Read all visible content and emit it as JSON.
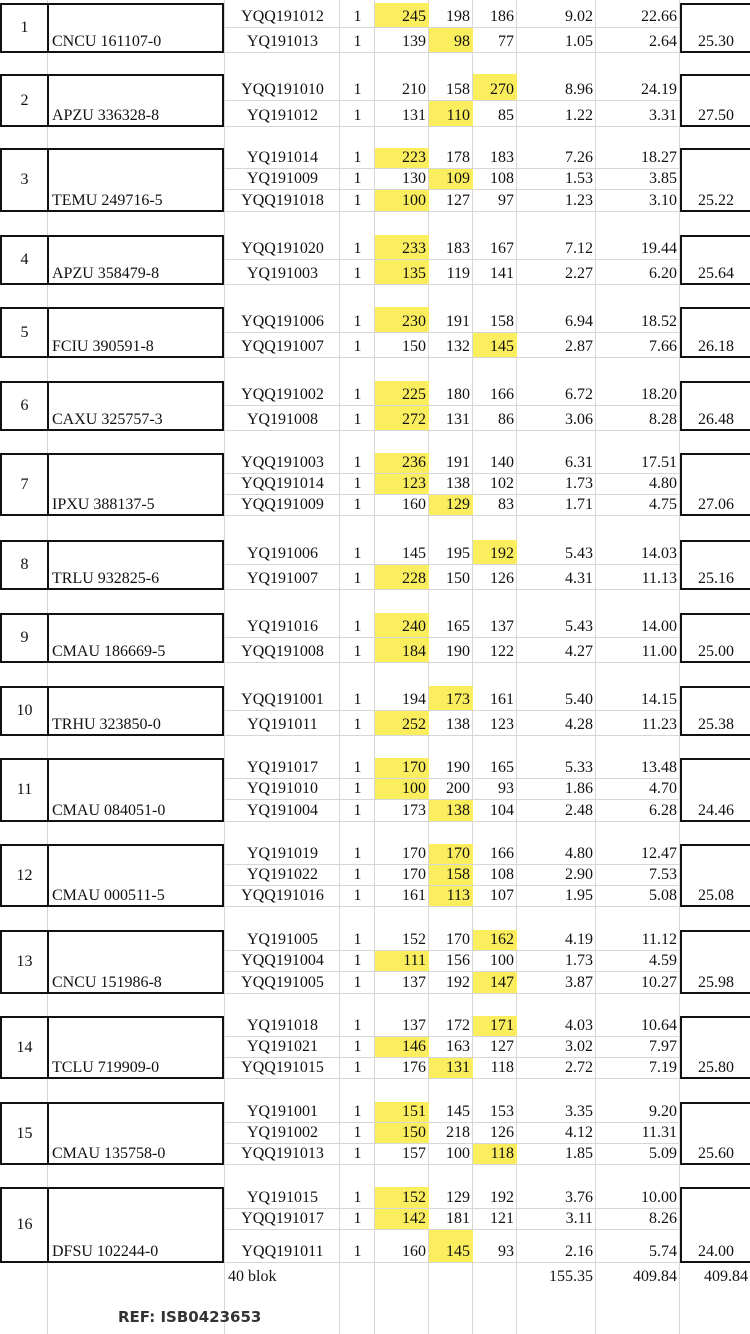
{
  "highlight_color": "#fbee5e",
  "groups": [
    {
      "no": "1",
      "container": "CNCU 161107-0",
      "total": "25.30",
      "rows": [
        {
          "block": "YQQ191012",
          "qty": "1",
          "a": "245",
          "b": "198",
          "c": "186",
          "d": "9.02",
          "e": "22.66",
          "hl": "a"
        },
        {
          "block": "YQ191013",
          "qty": "1",
          "a": "139",
          "b": "98",
          "c": "77",
          "d": "1.05",
          "e": "2.64",
          "hl": "b"
        }
      ]
    },
    {
      "no": "2",
      "container": "APZU 336328-8",
      "total": "27.50",
      "rows": [
        {
          "block": "YQQ191010",
          "qty": "1",
          "a": "210",
          "b": "158",
          "c": "270",
          "d": "8.96",
          "e": "24.19",
          "hl": "c"
        },
        {
          "block": "YQ191012",
          "qty": "1",
          "a": "131",
          "b": "110",
          "c": "85",
          "d": "1.22",
          "e": "3.31",
          "hl": "b"
        }
      ]
    },
    {
      "no": "3",
      "container": "TEMU 249716-5",
      "total": "25.22",
      "rows": [
        {
          "block": "YQ191014",
          "qty": "1",
          "a": "223",
          "b": "178",
          "c": "183",
          "d": "7.26",
          "e": "18.27",
          "hl": "a"
        },
        {
          "block": "YQ191009",
          "qty": "1",
          "a": "130",
          "b": "109",
          "c": "108",
          "d": "1.53",
          "e": "3.85",
          "hl": "b"
        },
        {
          "block": "YQQ191018",
          "qty": "1",
          "a": "100",
          "b": "127",
          "c": "97",
          "d": "1.23",
          "e": "3.10",
          "hl": "a"
        }
      ]
    },
    {
      "no": "4",
      "container": "APZU 358479-8",
      "total": "25.64",
      "rows": [
        {
          "block": "YQQ191020",
          "qty": "1",
          "a": "233",
          "b": "183",
          "c": "167",
          "d": "7.12",
          "e": "19.44",
          "hl": "a"
        },
        {
          "block": "YQ191003",
          "qty": "1",
          "a": "135",
          "b": "119",
          "c": "141",
          "d": "2.27",
          "e": "6.20",
          "hl": "a"
        }
      ]
    },
    {
      "no": "5",
      "container": "FCIU 390591-8",
      "total": "26.18",
      "rows": [
        {
          "block": "YQQ191006",
          "qty": "1",
          "a": "230",
          "b": "191",
          "c": "158",
          "d": "6.94",
          "e": "18.52",
          "hl": "a"
        },
        {
          "block": "YQQ191007",
          "qty": "1",
          "a": "150",
          "b": "132",
          "c": "145",
          "d": "2.87",
          "e": "7.66",
          "hl": "c"
        }
      ]
    },
    {
      "no": "6",
      "container": "CAXU 325757-3",
      "total": "26.48",
      "rows": [
        {
          "block": "YQQ191002",
          "qty": "1",
          "a": "225",
          "b": "180",
          "c": "166",
          "d": "6.72",
          "e": "18.20",
          "hl": "a"
        },
        {
          "block": "YQ191008",
          "qty": "1",
          "a": "272",
          "b": "131",
          "c": "86",
          "d": "3.06",
          "e": "8.28",
          "hl": "a"
        }
      ]
    },
    {
      "no": "7",
      "container": "IPXU 388137-5",
      "total": "27.06",
      "rows": [
        {
          "block": "YQQ191003",
          "qty": "1",
          "a": "236",
          "b": "191",
          "c": "140",
          "d": "6.31",
          "e": "17.51",
          "hl": "a"
        },
        {
          "block": "YQQ191014",
          "qty": "1",
          "a": "123",
          "b": "138",
          "c": "102",
          "d": "1.73",
          "e": "4.80",
          "hl": "a"
        },
        {
          "block": "YQQ191009",
          "qty": "1",
          "a": "160",
          "b": "129",
          "c": "83",
          "d": "1.71",
          "e": "4.75",
          "hl": "b"
        }
      ]
    },
    {
      "no": "8",
      "container": "TRLU 932825-6",
      "total": "25.16",
      "rows": [
        {
          "block": "YQ191006",
          "qty": "1",
          "a": "145",
          "b": "195",
          "c": "192",
          "d": "5.43",
          "e": "14.03",
          "hl": "c"
        },
        {
          "block": "YQ191007",
          "qty": "1",
          "a": "228",
          "b": "150",
          "c": "126",
          "d": "4.31",
          "e": "11.13",
          "hl": "a"
        }
      ]
    },
    {
      "no": "9",
      "container": "CMAU 186669-5",
      "total": "25.00",
      "rows": [
        {
          "block": "YQ191016",
          "qty": "1",
          "a": "240",
          "b": "165",
          "c": "137",
          "d": "5.43",
          "e": "14.00",
          "hl": "a"
        },
        {
          "block": "YQQ191008",
          "qty": "1",
          "a": "184",
          "b": "190",
          "c": "122",
          "d": "4.27",
          "e": "11.00",
          "hl": "a"
        }
      ]
    },
    {
      "no": "10",
      "container": "TRHU 323850-0",
      "total": "25.38",
      "rows": [
        {
          "block": "YQQ191001",
          "qty": "1",
          "a": "194",
          "b": "173",
          "c": "161",
          "d": "5.40",
          "e": "14.15",
          "hl": "b"
        },
        {
          "block": "YQ191011",
          "qty": "1",
          "a": "252",
          "b": "138",
          "c": "123",
          "d": "4.28",
          "e": "11.23",
          "hl": "a"
        }
      ]
    },
    {
      "no": "11",
      "container": "CMAU 084051-0",
      "total": "24.46",
      "rows": [
        {
          "block": "YQ191017",
          "qty": "1",
          "a": "170",
          "b": "190",
          "c": "165",
          "d": "5.33",
          "e": "13.48",
          "hl": "a"
        },
        {
          "block": "YQ191010",
          "qty": "1",
          "a": "100",
          "b": "200",
          "c": "93",
          "d": "1.86",
          "e": "4.70",
          "hl": "a"
        },
        {
          "block": "YQ191004",
          "qty": "1",
          "a": "173",
          "b": "138",
          "c": "104",
          "d": "2.48",
          "e": "6.28",
          "hl": "b"
        }
      ]
    },
    {
      "no": "12",
      "container": "CMAU 000511-5",
      "total": "25.08",
      "rows": [
        {
          "block": "YQ191019",
          "qty": "1",
          "a": "170",
          "b": "170",
          "c": "166",
          "d": "4.80",
          "e": "12.47",
          "hl": "b"
        },
        {
          "block": "YQ191022",
          "qty": "1",
          "a": "170",
          "b": "158",
          "c": "108",
          "d": "2.90",
          "e": "7.53",
          "hl": "b"
        },
        {
          "block": "YQQ191016",
          "qty": "1",
          "a": "161",
          "b": "113",
          "c": "107",
          "d": "1.95",
          "e": "5.08",
          "hl": "b"
        }
      ]
    },
    {
      "no": "13",
      "container": "CNCU 151986-8",
      "total": "25.98",
      "rows": [
        {
          "block": "YQ191005",
          "qty": "1",
          "a": "152",
          "b": "170",
          "c": "162",
          "d": "4.19",
          "e": "11.12",
          "hl": "c"
        },
        {
          "block": "YQQ191004",
          "qty": "1",
          "a": "111",
          "b": "156",
          "c": "100",
          "d": "1.73",
          "e": "4.59",
          "hl": "a"
        },
        {
          "block": "YQQ191005",
          "qty": "1",
          "a": "137",
          "b": "192",
          "c": "147",
          "d": "3.87",
          "e": "10.27",
          "hl": "c"
        }
      ]
    },
    {
      "no": "14",
      "container": "TCLU 719909-0",
      "total": "25.80",
      "rows": [
        {
          "block": "YQ191018",
          "qty": "1",
          "a": "137",
          "b": "172",
          "c": "171",
          "d": "4.03",
          "e": "10.64",
          "hl": "c"
        },
        {
          "block": "YQ191021",
          "qty": "1",
          "a": "146",
          "b": "163",
          "c": "127",
          "d": "3.02",
          "e": "7.97",
          "hl": "a"
        },
        {
          "block": "YQQ191015",
          "qty": "1",
          "a": "176",
          "b": "131",
          "c": "118",
          "d": "2.72",
          "e": "7.19",
          "hl": "b"
        }
      ]
    },
    {
      "no": "15",
      "container": "CMAU 135758-0",
      "total": "25.60",
      "rows": [
        {
          "block": "YQ191001",
          "qty": "1",
          "a": "151",
          "b": "145",
          "c": "153",
          "d": "3.35",
          "e": "9.20",
          "hl": "a"
        },
        {
          "block": "YQ191002",
          "qty": "1",
          "a": "150",
          "b": "218",
          "c": "126",
          "d": "4.12",
          "e": "11.31",
          "hl": "a"
        },
        {
          "block": "YQQ191013",
          "qty": "1",
          "a": "157",
          "b": "100",
          "c": "118",
          "d": "1.85",
          "e": "5.09",
          "hl": "c"
        }
      ]
    },
    {
      "no": "16",
      "container": "DFSU 102244-0",
      "total": "24.00",
      "rows": [
        {
          "block": "YQ191015",
          "qty": "1",
          "a": "152",
          "b": "129",
          "c": "192",
          "d": "3.76",
          "e": "10.00",
          "hl": "a"
        },
        {
          "block": "YQQ191017",
          "qty": "1",
          "a": "142",
          "b": "181",
          "c": "121",
          "d": "3.11",
          "e": "8.26",
          "hl": "a"
        },
        {
          "block": "YQQ191011",
          "qty": "1",
          "a": "160",
          "b": "145",
          "c": "93",
          "d": "2.16",
          "e": "5.74",
          "hl": "b"
        }
      ]
    }
  ],
  "footer": {
    "blocks": "40 blok",
    "sum_d": "155.35",
    "sum_e": "409.84",
    "sum_total": "409.84"
  },
  "ref": "REF: ISB0423653"
}
